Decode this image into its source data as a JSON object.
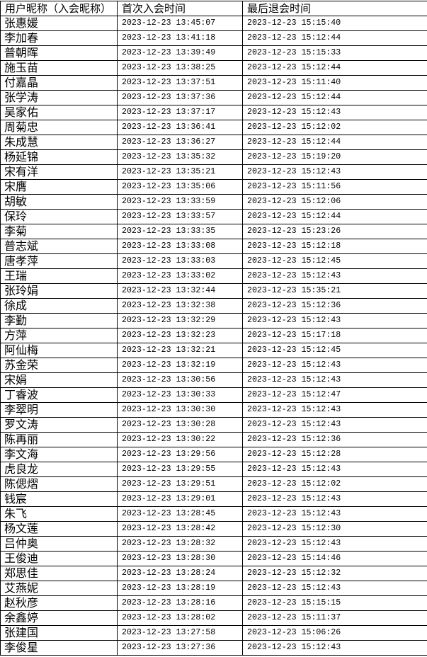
{
  "table": {
    "headers": [
      "用户昵称（入会昵称）",
      "首次入会时间",
      "最后退会时间"
    ],
    "rows": [
      [
        "张惠媛",
        "2023-12-23 13:45:07",
        "2023-12-23 15:15:40"
      ],
      [
        "李加春",
        "2023-12-23 13:41:18",
        "2023-12-23 15:12:44"
      ],
      [
        "普朝晖",
        "2023-12-23 13:39:49",
        "2023-12-23 15:15:33"
      ],
      [
        "施玉苗",
        "2023-12-23 13:38:25",
        "2023-12-23 15:12:44"
      ],
      [
        "付嘉晶",
        "2023-12-23 13:37:51",
        "2023-12-23 15:11:40"
      ],
      [
        "张学涛",
        "2023-12-23 13:37:36",
        "2023-12-23 15:12:44"
      ],
      [
        "吴家佑",
        "2023-12-23 13:37:17",
        "2023-12-23 15:12:43"
      ],
      [
        "周菊忠",
        "2023-12-23 13:36:41",
        "2023-12-23 15:12:02"
      ],
      [
        "朱成慧",
        "2023-12-23 13:36:27",
        "2023-12-23 15:12:44"
      ],
      [
        "杨延锦",
        "2023-12-23 13:35:32",
        "2023-12-23 15:19:20"
      ],
      [
        "宋有洋",
        "2023-12-23 13:35:21",
        "2023-12-23 15:12:43"
      ],
      [
        "宋膺",
        "2023-12-23 13:35:06",
        "2023-12-23 15:11:56"
      ],
      [
        "胡敏",
        "2023-12-23 13:33:59",
        "2023-12-23 15:12:06"
      ],
      [
        "保玲",
        "2023-12-23 13:33:57",
        "2023-12-23 15:12:44"
      ],
      [
        "李菊",
        "2023-12-23 13:33:35",
        "2023-12-23 15:23:26"
      ],
      [
        "普志斌",
        "2023-12-23 13:33:08",
        "2023-12-23 15:12:18"
      ],
      [
        "唐孝萍",
        "2023-12-23 13:33:03",
        "2023-12-23 15:12:45"
      ],
      [
        "王瑞",
        "2023-12-23 13:33:02",
        "2023-12-23 15:12:43"
      ],
      [
        "张玲娟",
        "2023-12-23 13:32:44",
        "2023-12-23 15:35:21"
      ],
      [
        "徐成",
        "2023-12-23 13:32:38",
        "2023-12-23 15:12:36"
      ],
      [
        "李勤",
        "2023-12-23 13:32:29",
        "2023-12-23 15:12:43"
      ],
      [
        "方萍",
        "2023-12-23 13:32:23",
        "2023-12-23 15:17:18"
      ],
      [
        "阿仙梅",
        "2023-12-23 13:32:21",
        "2023-12-23 15:12:45"
      ],
      [
        "苏金荣",
        "2023-12-23 13:32:19",
        "2023-12-23 15:12:43"
      ],
      [
        "宋娟",
        "2023-12-23 13:30:56",
        "2023-12-23 15:12:43"
      ],
      [
        "丁睿波",
        "2023-12-23 13:30:33",
        "2023-12-23 15:12:47"
      ],
      [
        "李翠明",
        "2023-12-23 13:30:30",
        "2023-12-23 15:12:43"
      ],
      [
        "罗文涛",
        "2023-12-23 13:30:28",
        "2023-12-23 15:12:43"
      ],
      [
        "陈再丽",
        "2023-12-23 13:30:22",
        "2023-12-23 15:12:36"
      ],
      [
        "李文海",
        "2023-12-23 13:29:56",
        "2023-12-23 15:12:28"
      ],
      [
        "虎良龙",
        "2023-12-23 13:29:55",
        "2023-12-23 15:12:43"
      ],
      [
        "陈偲熠",
        "2023-12-23 13:29:51",
        "2023-12-23 15:12:02"
      ],
      [
        "钱宸",
        "2023-12-23 13:29:01",
        "2023-12-23 15:12:43"
      ],
      [
        "朱飞",
        "2023-12-23 13:28:45",
        "2023-12-23 15:12:43"
      ],
      [
        "杨文莲",
        "2023-12-23 13:28:42",
        "2023-12-23 15:12:30"
      ],
      [
        "吕仲奥",
        "2023-12-23 13:28:32",
        "2023-12-23 15:12:43"
      ],
      [
        "王俊迪",
        "2023-12-23 13:28:30",
        "2023-12-23 15:14:46"
      ],
      [
        "郑思佳",
        "2023-12-23 13:28:24",
        "2023-12-23 15:12:32"
      ],
      [
        "艾燕妮",
        "2023-12-23 13:28:19",
        "2023-12-23 15:12:43"
      ],
      [
        "赵秋彦",
        "2023-12-23 13:28:16",
        "2023-12-23 15:15:15"
      ],
      [
        "余鑫婷",
        "2023-12-23 13:28:02",
        "2023-12-23 15:11:37"
      ],
      [
        "张建国",
        "2023-12-23 13:27:58",
        "2023-12-23 15:06:26"
      ],
      [
        "李俊星",
        "2023-12-23 13:27:36",
        "2023-12-23 15:12:43"
      ]
    ]
  }
}
